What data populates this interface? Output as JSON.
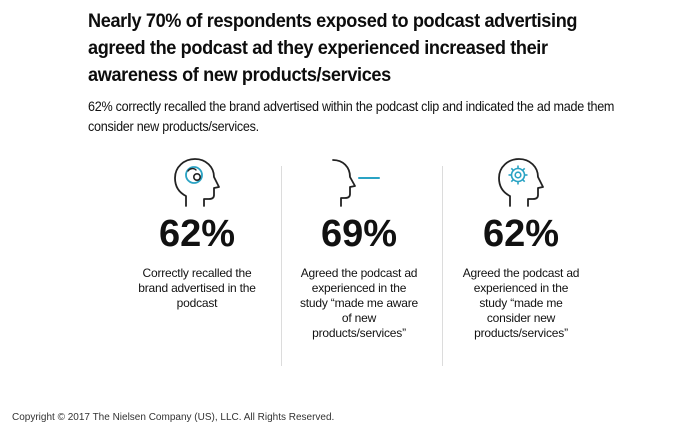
{
  "headline": "Nearly 70% of respondents exposed to podcast advertising agreed the podcast ad they experienced increased their awareness of new products/services",
  "subhead": "62% correctly recalled the brand advertised within the podcast clip and indicated the ad made them consider new products/services.",
  "colors": {
    "icon_stroke": "#222222",
    "accent_teal": "#2aa3c4",
    "divider": "#dcdcdc"
  },
  "stats": [
    {
      "icon": "head-brain-icon",
      "value": "62%",
      "description": "Correctly recalled the brand advertised in the podcast"
    },
    {
      "icon": "head-listening-icon",
      "value": "69%",
      "description": "Agreed the podcast ad experienced in the study “made me aware of new products/services”"
    },
    {
      "icon": "head-gear-icon",
      "value": "62%",
      "description": "Agreed the podcast ad experienced in the study “made me consider new products/services”"
    }
  ],
  "copyright": "Copyright © 2017 The Nielsen Company (US), LLC. All Rights Reserved."
}
